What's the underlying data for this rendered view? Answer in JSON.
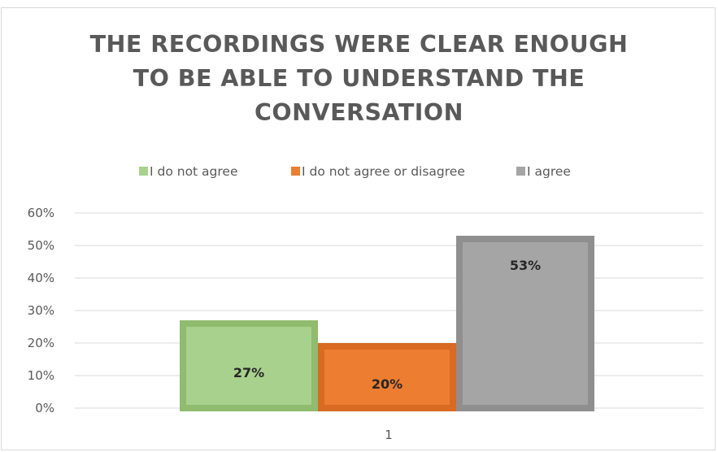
{
  "chart_data": {
    "type": "bar",
    "title_lines": [
      "THE RECORDINGS WERE CLEAR ENOUGH",
      "TO BE ABLE TO UNDERSTAND THE",
      "CONVERSATION"
    ],
    "categories": [
      "1"
    ],
    "series": [
      {
        "name": "I do not agree",
        "values": [
          0.27
        ],
        "label": "27%",
        "color": "#a9d18e",
        "border": "#8fbc6e"
      },
      {
        "name": "I do not agree or disagree",
        "values": [
          0.2
        ],
        "label": "20%",
        "color": "#ed7d31",
        "border": "#d86a22"
      },
      {
        "name": "I agree",
        "values": [
          0.53
        ],
        "label": "53%",
        "color": "#a5a5a5",
        "border": "#8f8f8f"
      }
    ],
    "ylim": [
      0,
      0.6
    ],
    "yticks": [
      0,
      0.1,
      0.2,
      0.3,
      0.4,
      0.5,
      0.6
    ],
    "ytick_labels": [
      "0%",
      "10%",
      "20%",
      "30%",
      "40%",
      "50%",
      "60%"
    ],
    "xlabel": "",
    "ylabel": "",
    "grid": true,
    "legend_position": "top",
    "gridline_color": "#d9d9d9",
    "text_color": "#595959"
  }
}
